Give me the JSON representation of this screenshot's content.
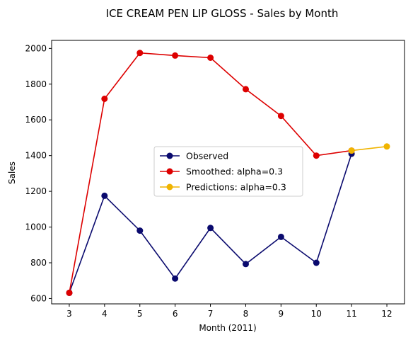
{
  "chart_data": {
    "type": "line",
    "title": "ICE CREAM PEN LIP GLOSS  - Sales by Month",
    "xlabel": "Month (2011)",
    "ylabel": "Sales",
    "xlim": [
      2.5,
      12.5
    ],
    "ylim": [
      570,
      2045
    ],
    "xticks": [
      3,
      4,
      5,
      6,
      7,
      8,
      9,
      10,
      11,
      12
    ],
    "yticks": [
      600,
      800,
      1000,
      1200,
      1400,
      1600,
      1800,
      2000
    ],
    "grid": false,
    "legend_position": "center-right",
    "series": [
      {
        "name": "Observed",
        "color": "#0a0a6e",
        "x": [
          3,
          4,
          5,
          6,
          7,
          8,
          9,
          10,
          11
        ],
        "values": [
          632,
          1175,
          980,
          712,
          995,
          793,
          945,
          800,
          1410
        ]
      },
      {
        "name": "Smoothed: alpha=0.3",
        "color": "#dd0000",
        "x": [
          3,
          4,
          5,
          6,
          7,
          8,
          9,
          10,
          11
        ],
        "values": [
          632,
          1718,
          1975,
          1960,
          1948,
          1772,
          1622,
          1400,
          1428
        ]
      },
      {
        "name": "Predictions: alpha=0.3",
        "color": "#f0b400",
        "x": [
          11,
          12
        ],
        "values": [
          1428,
          1451
        ]
      }
    ]
  }
}
